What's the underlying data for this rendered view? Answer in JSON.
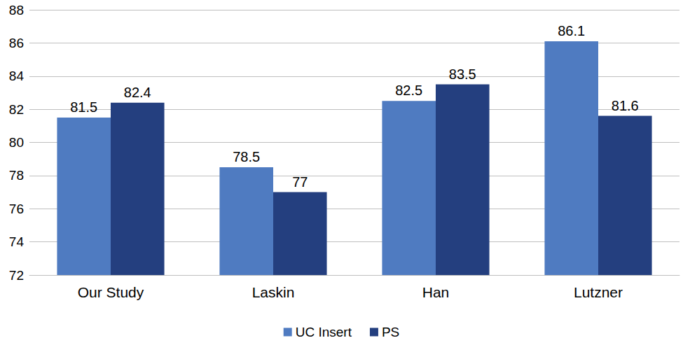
{
  "chart_data": {
    "type": "bar",
    "categories": [
      "Our Study",
      "Laskin",
      "Han",
      "Lutzner"
    ],
    "series": [
      {
        "name": "UC Insert",
        "color": "#4f7bc1",
        "values": [
          81.5,
          78.5,
          82.5,
          86.1
        ]
      },
      {
        "name": "PS",
        "color": "#243f7f",
        "values": [
          82.4,
          77,
          83.5,
          81.6
        ]
      }
    ],
    "ylim": [
      72,
      88
    ],
    "yticks": [
      72,
      74,
      76,
      78,
      80,
      82,
      84,
      86,
      88
    ],
    "grid": true,
    "legend": "bottom",
    "data_labels": true
  }
}
